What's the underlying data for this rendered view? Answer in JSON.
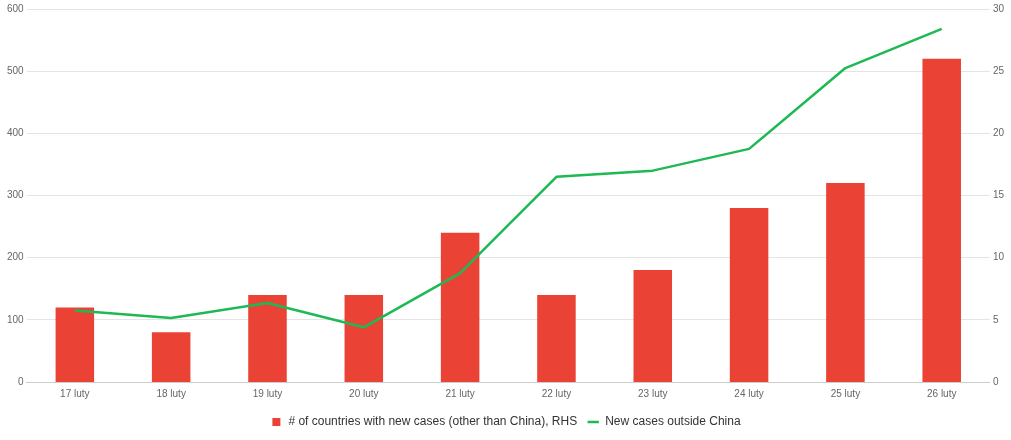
{
  "chart_data": {
    "type": "bar",
    "categories": [
      "17 luty",
      "18 luty",
      "19 luty",
      "20 luty",
      "21 luty",
      "22 luty",
      "23 luty",
      "24 luty",
      "25 luty",
      "26 luty"
    ],
    "series": [
      {
        "name": "# of countries with new cases (other than China), RHS",
        "axis": "y2",
        "color": "#ea4335",
        "values": [
          6,
          4,
          7,
          7,
          12,
          7,
          9,
          14,
          16,
          26
        ]
      },
      {
        "name": "New cases outside China",
        "type": "line",
        "color": "#1db954",
        "values": [
          115,
          103,
          127,
          88,
          175,
          330,
          340,
          375,
          505,
          568
        ]
      }
    ],
    "ylim": [
      0,
      600
    ],
    "yticks": [
      0,
      100,
      200,
      300,
      400,
      500,
      600
    ],
    "y2lim": [
      0,
      30
    ],
    "y2ticks": [
      0,
      5,
      10,
      15,
      20,
      25,
      30
    ],
    "grid": "y",
    "legend": "bottom",
    "marker": "none",
    "line_style": "solid"
  }
}
